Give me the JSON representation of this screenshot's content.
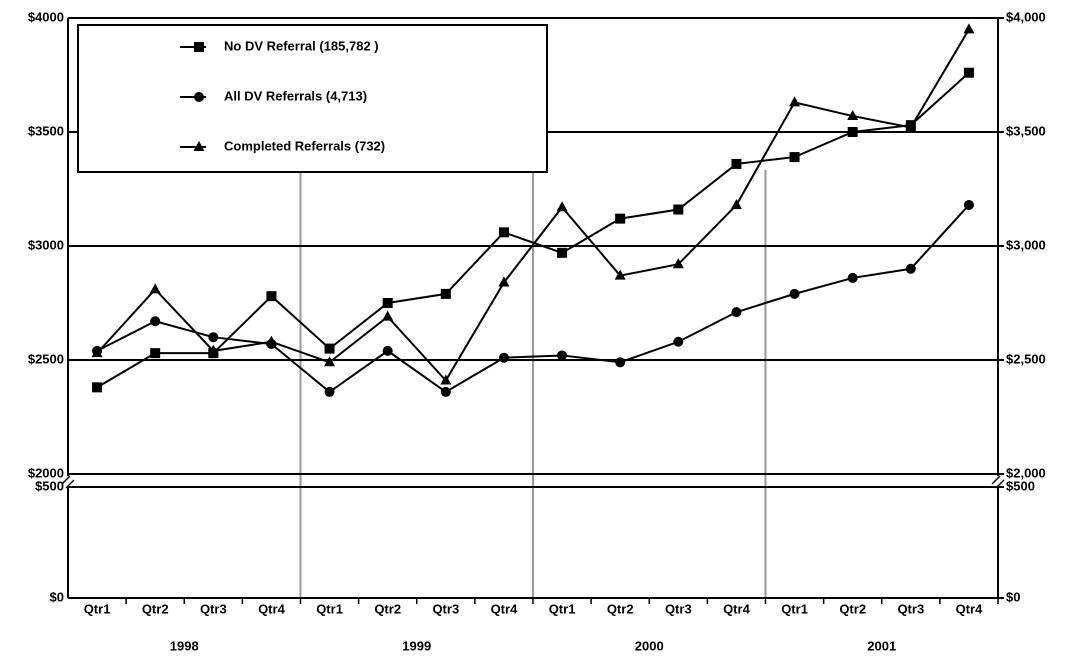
{
  "chart_data": {
    "type": "line",
    "categories": [
      "Qtr1",
      "Qtr2",
      "Qtr3",
      "Qtr4",
      "Qtr1",
      "Qtr2",
      "Qtr3",
      "Qtr4",
      "Qtr1",
      "Qtr2",
      "Qtr3",
      "Qtr4",
      "Qtr1",
      "Qtr2",
      "Qtr3",
      "Qtr4"
    ],
    "years": [
      "1998",
      "1999",
      "2000",
      "2001"
    ],
    "series": [
      {
        "name": "No DV Referral (185,782 )",
        "color": "#000000",
        "marker": "square",
        "values": [
          2380,
          2530,
          2530,
          2780,
          2550,
          2750,
          2790,
          3060,
          2970,
          3120,
          3160,
          3360,
          3390,
          3500,
          3530,
          3760
        ]
      },
      {
        "name": "All DV Referrals (4,713)",
        "color": "#000000",
        "marker": "circle",
        "values": [
          2540,
          2670,
          2600,
          2570,
          2360,
          2540,
          2360,
          2510,
          2520,
          2490,
          2580,
          2710,
          2790,
          2860,
          2900,
          3180
        ]
      },
      {
        "name": "Completed Referrals (732)",
        "color": "#000000",
        "marker": "triangle",
        "values": [
          2530,
          2810,
          2540,
          2580,
          2490,
          2690,
          2410,
          2840,
          3170,
          2870,
          2920,
          3180,
          3630,
          3570,
          3520,
          3950
        ]
      }
    ],
    "panels": [
      {
        "ylim": [
          2000,
          4000
        ],
        "yticks": [
          {
            "value": 2000,
            "label": "$2000"
          },
          {
            "value": 2500,
            "label": "$2500"
          },
          {
            "value": 3000,
            "label": "$3000"
          },
          {
            "value": 3500,
            "label": "$3500"
          },
          {
            "value": 4000,
            "label": "$4000"
          }
        ],
        "y2ticks": [
          {
            "value": 2000,
            "label": "$2,000"
          },
          {
            "value": 2500,
            "label": "$2,500"
          },
          {
            "value": 3000,
            "label": "$3,000"
          },
          {
            "value": 3500,
            "label": "$3,500"
          },
          {
            "value": 4000,
            "label": "$4,000"
          }
        ]
      },
      {
        "ylim": [
          0,
          500
        ],
        "yticks": [
          {
            "value": 0,
            "label": "$0"
          },
          {
            "value": 500,
            "label": "$500"
          }
        ],
        "y2ticks": [
          {
            "value": 0,
            "label": "$0"
          },
          {
            "value": 500,
            "label": "$500"
          }
        ]
      }
    ],
    "grid": true,
    "legend": "upper left"
  }
}
